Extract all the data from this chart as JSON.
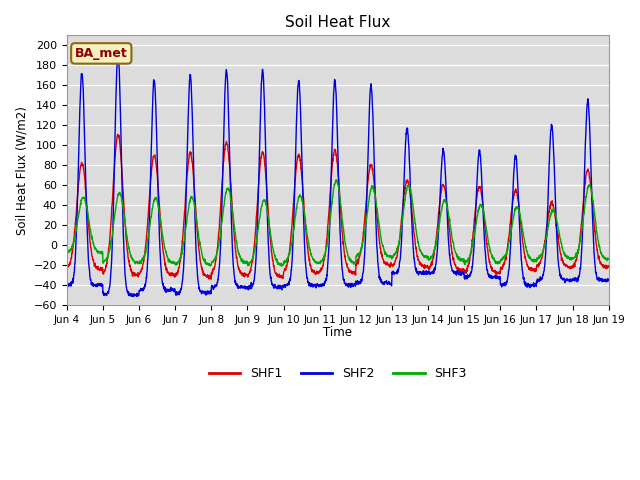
{
  "title": "Soil Heat Flux",
  "ylabel": "Soil Heat Flux (W/m2)",
  "xlabel": "Time",
  "annotation": "BA_met",
  "ylim": [
    -60,
    210
  ],
  "yticks": [
    -60,
    -40,
    -20,
    0,
    20,
    40,
    60,
    80,
    100,
    120,
    140,
    160,
    180,
    200
  ],
  "colors": {
    "SHF1": "#dd0000",
    "SHF2": "#0000dd",
    "SHF3": "#00aa00"
  },
  "background_color": "#dcdcdc",
  "grid_color": "#ffffff",
  "shf2_peaks": [
    172,
    192,
    165,
    170,
    175,
    175,
    165,
    165,
    160,
    117,
    95,
    95,
    90,
    120,
    145
  ],
  "shf1_peaks": [
    82,
    110,
    90,
    92,
    103,
    93,
    90,
    95,
    80,
    65,
    60,
    58,
    55,
    42,
    75
  ],
  "shf3_peaks": [
    48,
    52,
    47,
    48,
    57,
    45,
    50,
    65,
    58,
    60,
    45,
    40,
    38,
    35,
    60
  ],
  "shf1_night": [
    -24,
    -30,
    -30,
    -32,
    -30,
    -32,
    -28,
    -28,
    -20,
    -22,
    -25,
    -28,
    -25,
    -22,
    -22
  ],
  "shf2_night": [
    -40,
    -50,
    -45,
    -48,
    -42,
    -42,
    -40,
    -40,
    -38,
    -28,
    -28,
    -32,
    -40,
    -35,
    -35
  ],
  "shf3_night": [
    -8,
    -18,
    -18,
    -20,
    -18,
    -20,
    -18,
    -18,
    -12,
    -12,
    -15,
    -18,
    -16,
    -14,
    -14
  ],
  "n_days": 15,
  "pts_per_day": 144
}
